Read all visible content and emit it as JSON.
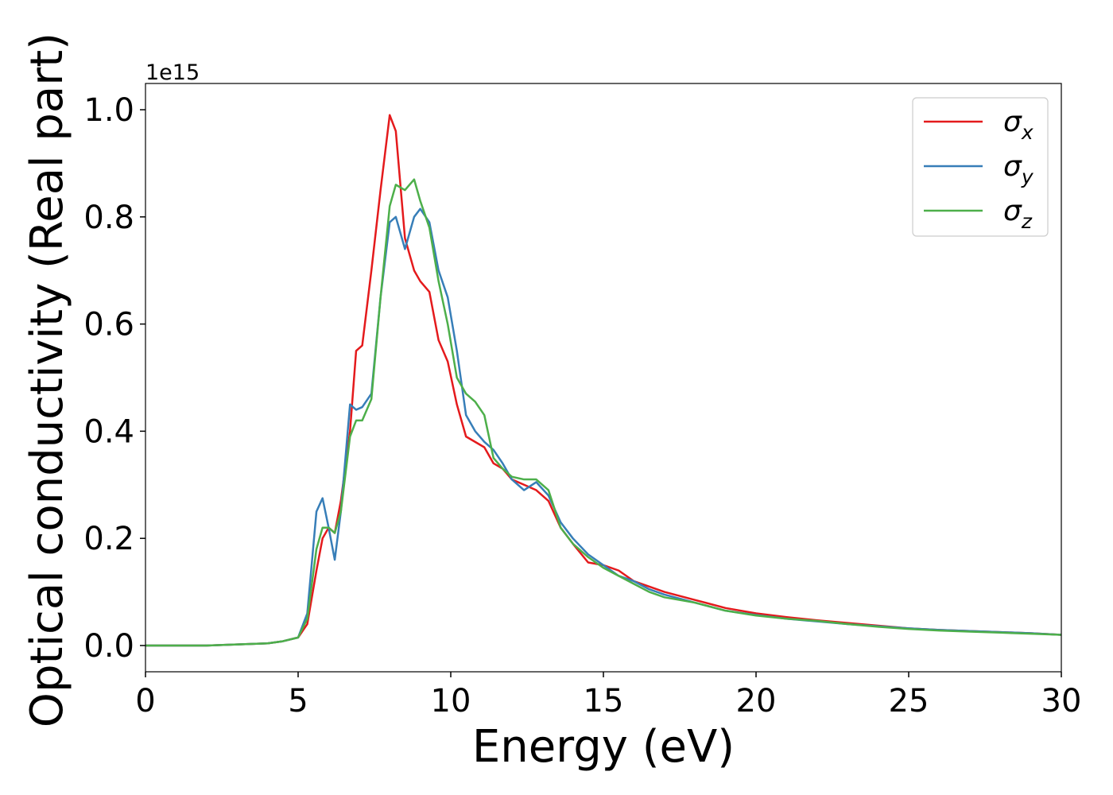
{
  "chart_data": {
    "type": "line",
    "xlabel": "Energy (eV)",
    "ylabel": "Optical conductivity (Real part)",
    "y_offset_label": "1e15",
    "xlim": [
      0,
      30
    ],
    "ylim": [
      -0.049,
      1.049
    ],
    "xticks": [
      0,
      5,
      10,
      15,
      20,
      25,
      30
    ],
    "yticks": [
      {
        "value": 0,
        "label": "0.0"
      },
      0.2,
      0.4,
      0.6,
      0.8,
      {
        "value": 1,
        "label": "1.0"
      }
    ],
    "legend": "upper right",
    "x": [
      0,
      1,
      2,
      3,
      4,
      4.5,
      5,
      5.3,
      5.6,
      5.8,
      6.0,
      6.2,
      6.4,
      6.7,
      6.9,
      7.1,
      7.4,
      7.7,
      8.0,
      8.2,
      8.5,
      8.8,
      9.0,
      9.3,
      9.6,
      9.9,
      10.2,
      10.5,
      10.8,
      11.1,
      11.4,
      11.7,
      12.0,
      12.4,
      12.8,
      13.2,
      13.6,
      14.0,
      14.5,
      15,
      15.5,
      16,
      16.5,
      17,
      18,
      19,
      20,
      21,
      22,
      23,
      24,
      25,
      26,
      27,
      28,
      29,
      30
    ],
    "series": [
      {
        "name": "σx",
        "color": "#e41a1c",
        "values": [
          0,
          0,
          0,
          0.002,
          0.004,
          0.008,
          0.015,
          0.04,
          0.14,
          0.2,
          0.22,
          0.21,
          0.27,
          0.4,
          0.55,
          0.56,
          0.7,
          0.85,
          0.99,
          0.96,
          0.76,
          0.7,
          0.68,
          0.66,
          0.57,
          0.53,
          0.45,
          0.39,
          0.38,
          0.37,
          0.34,
          0.33,
          0.31,
          0.3,
          0.29,
          0.27,
          0.22,
          0.19,
          0.155,
          0.15,
          0.14,
          0.12,
          0.11,
          0.1,
          0.085,
          0.07,
          0.06,
          0.053,
          0.047,
          0.042,
          0.037,
          0.032,
          0.029,
          0.027,
          0.025,
          0.023,
          0.02
        ]
      },
      {
        "name": "σy",
        "color": "#377eb8",
        "values": [
          0,
          0,
          0,
          0.002,
          0.004,
          0.008,
          0.015,
          0.06,
          0.25,
          0.275,
          0.22,
          0.16,
          0.25,
          0.45,
          0.44,
          0.445,
          0.47,
          0.65,
          0.79,
          0.8,
          0.74,
          0.8,
          0.815,
          0.79,
          0.7,
          0.65,
          0.55,
          0.43,
          0.4,
          0.38,
          0.365,
          0.34,
          0.31,
          0.29,
          0.305,
          0.28,
          0.23,
          0.2,
          0.17,
          0.15,
          0.13,
          0.12,
          0.105,
          0.095,
          0.08,
          0.065,
          0.057,
          0.05,
          0.045,
          0.04,
          0.036,
          0.032,
          0.029,
          0.027,
          0.025,
          0.023,
          0.02
        ]
      },
      {
        "name": "σz",
        "color": "#4daf4a",
        "values": [
          0,
          0,
          0,
          0.002,
          0.004,
          0.008,
          0.015,
          0.05,
          0.18,
          0.22,
          0.22,
          0.21,
          0.25,
          0.39,
          0.42,
          0.42,
          0.46,
          0.65,
          0.82,
          0.86,
          0.85,
          0.87,
          0.83,
          0.78,
          0.68,
          0.6,
          0.5,
          0.47,
          0.455,
          0.43,
          0.35,
          0.33,
          0.315,
          0.31,
          0.31,
          0.29,
          0.22,
          0.19,
          0.165,
          0.145,
          0.13,
          0.115,
          0.1,
          0.09,
          0.08,
          0.065,
          0.056,
          0.05,
          0.046,
          0.04,
          0.035,
          0.031,
          0.028,
          0.026,
          0.024,
          0.022,
          0.02
        ]
      }
    ]
  }
}
